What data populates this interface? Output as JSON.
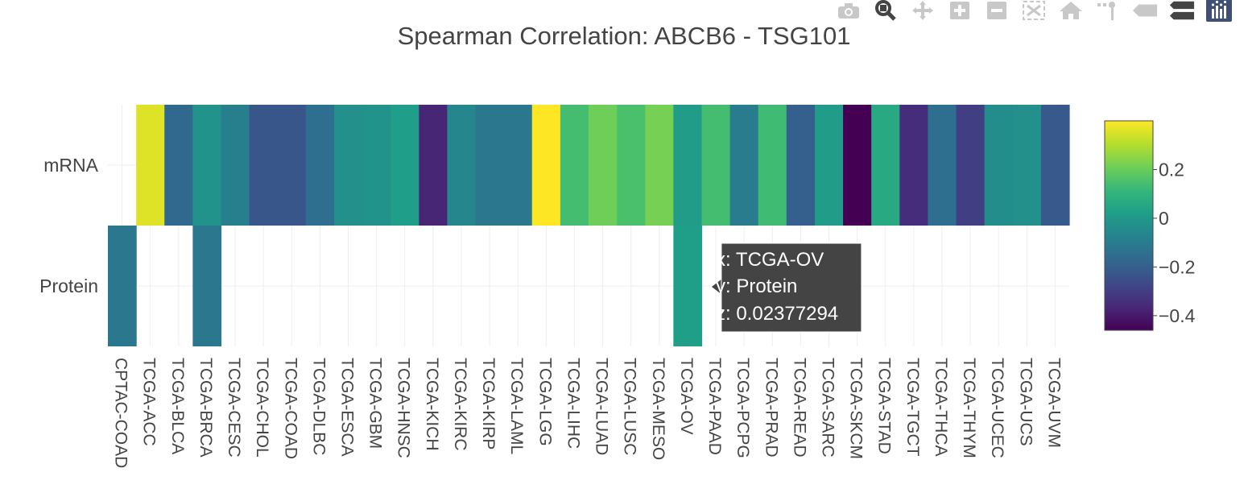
{
  "modebar": {
    "buttons": [
      {
        "name": "camera-icon",
        "title": "Download plot as a png"
      },
      {
        "name": "zoom-icon",
        "title": "Zoom"
      },
      {
        "name": "pan-icon",
        "title": "Pan"
      },
      {
        "name": "zoom-in-icon",
        "title": "Zoom in"
      },
      {
        "name": "zoom-out-icon",
        "title": "Zoom out"
      },
      {
        "name": "autoscale-icon",
        "title": "Autoscale"
      },
      {
        "name": "home-icon",
        "title": "Reset axes"
      },
      {
        "name": "spike-lines-icon",
        "title": "Toggle Spike Lines"
      },
      {
        "name": "hover-closest-icon",
        "title": "Show closest data on hover"
      },
      {
        "name": "hover-compare-icon",
        "title": "Compare data on hover"
      },
      {
        "name": "plotly-logo-icon",
        "title": "Produced with Plotly"
      }
    ]
  },
  "tooltip": {
    "x_line": "x: TCGA-OV",
    "y_line": "y: Protein",
    "z_line": "z: 0.02377294",
    "cell": {
      "x": "TCGA-OV",
      "y": "Protein"
    }
  },
  "chart_data": {
    "type": "heatmap",
    "title": "Spearman Correlation: ABCB6 - TSG101",
    "xlabel": "",
    "ylabel": "",
    "x": [
      "CPTAC-COAD",
      "TCGA-ACC",
      "TCGA-BLCA",
      "TCGA-BRCA",
      "TCGA-CESC",
      "TCGA-CHOL",
      "TCGA-COAD",
      "TCGA-DLBC",
      "TCGA-ESCA",
      "TCGA-GBM",
      "TCGA-HNSC",
      "TCGA-KICH",
      "TCGA-KIRC",
      "TCGA-KIRP",
      "TCGA-LAML",
      "TCGA-LGG",
      "TCGA-LIHC",
      "TCGA-LUAD",
      "TCGA-LUSC",
      "TCGA-MESO",
      "TCGA-OV",
      "TCGA-PAAD",
      "TCGA-PCPG",
      "TCGA-PRAD",
      "TCGA-READ",
      "TCGA-SARC",
      "TCGA-SKCM",
      "TCGA-STAD",
      "TCGA-TGCT",
      "TCGA-THCA",
      "TCGA-THYM",
      "TCGA-UCEC",
      "TCGA-UCS",
      "TCGA-UVM"
    ],
    "y": [
      "Protein",
      "mRNA"
    ],
    "z": [
      [
        -0.12,
        null,
        null,
        -0.12,
        null,
        null,
        null,
        null,
        null,
        null,
        null,
        null,
        null,
        null,
        null,
        null,
        null,
        null,
        null,
        null,
        0.02377294,
        null,
        null,
        null,
        null,
        null,
        null,
        null,
        null,
        null,
        null,
        null,
        null,
        null
      ],
      [
        null,
        0.36,
        -0.17,
        -0.02,
        -0.09,
        -0.23,
        -0.23,
        -0.15,
        -0.03,
        -0.02,
        0.02,
        -0.37,
        -0.06,
        -0.12,
        -0.12,
        0.4,
        0.14,
        0.21,
        0.15,
        0.22,
        0.01,
        0.14,
        -0.1,
        0.13,
        -0.2,
        0.01,
        -0.46,
        0.06,
        -0.35,
        -0.15,
        -0.3,
        -0.04,
        -0.03,
        -0.22
      ]
    ],
    "colorscale": "Viridis",
    "zmin": -0.46,
    "zmax": 0.4,
    "colorbar": {
      "ticks": [
        0.2,
        0,
        -0.2,
        -0.4
      ],
      "tick_labels": [
        "0.2",
        "0",
        "−0.2",
        "−0.4"
      ],
      "placement": "right"
    },
    "grid": true
  }
}
